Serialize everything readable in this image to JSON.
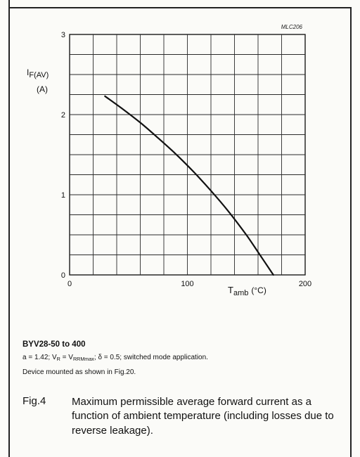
{
  "chart_data": {
    "type": "line",
    "reference_code": "MLC206",
    "y_axis": {
      "label_main": "I",
      "label_sub": "F(AV)",
      "unit": "(A)",
      "ticks": [
        "0",
        "1",
        "2",
        "3"
      ],
      "range": [
        0,
        3
      ]
    },
    "x_axis": {
      "label_main": "T",
      "label_sub": "amb",
      "unit": "(°C)",
      "ticks": [
        "0",
        "100",
        "200"
      ],
      "range": [
        0,
        200
      ]
    },
    "grid": true,
    "grid_step_x": 20,
    "grid_step_y": 0.25,
    "series": [
      {
        "x": [
          30,
          45,
          60,
          75,
          90,
          105,
          120,
          135,
          150,
          162,
          173
        ],
        "y": [
          2.23,
          2.07,
          1.9,
          1.71,
          1.51,
          1.29,
          1.05,
          0.79,
          0.5,
          0.24,
          0.0
        ]
      }
    ]
  },
  "device_title": "BYV28-50 to 400",
  "conditions": {
    "a_part": "a = 1.42; V",
    "vr_sub": "R",
    "eq": " = V",
    "vrrm_sub": "RRMmax",
    "rest": "; δ = 0.5; switched mode application."
  },
  "mounting_note": "Device mounted as shown in Fig.20.",
  "figure": {
    "number": "Fig.4",
    "caption": "Maximum permissible average forward current as a function of ambient temperature (including losses due to reverse leakage)."
  }
}
